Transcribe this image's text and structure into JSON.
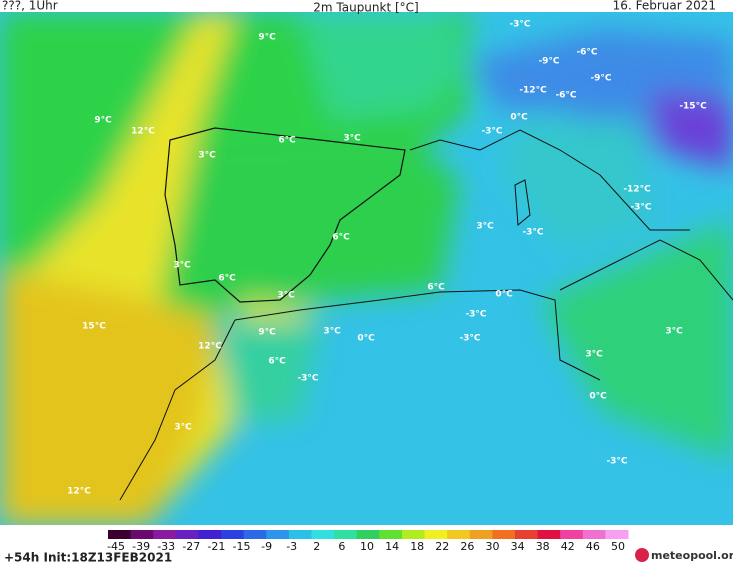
{
  "header": {
    "left": "???, 1Uhr",
    "title": "2m Taupunkt [°C]",
    "date": "16. Februar 2021"
  },
  "map_labels": [
    "-3°C",
    "9°C",
    "-6°C",
    "-9°C",
    "-9°C",
    "-12°C",
    "-6°C",
    "-15°C",
    "9°C",
    "12°C",
    "-3°C",
    "0°C",
    "6°C",
    "3°C",
    "3°C",
    "-12°C",
    "-3°C",
    "3°C",
    "-3°C",
    "6°C",
    "3°C",
    "6°C",
    "3°C",
    "6°C",
    "0°C",
    "-3°C",
    "15°C",
    "9°C",
    "3°C",
    "-3°C",
    "0°C",
    "12°C",
    "3°C",
    "3°C",
    "6°C",
    "-3°C",
    "0°C",
    "3°C",
    "-3°C",
    "12°C"
  ],
  "colorbar": {
    "ticks": [
      -45,
      -39,
      -33,
      -27,
      -21,
      -15,
      -9,
      -3,
      2,
      6,
      10,
      14,
      18,
      22,
      26,
      30,
      34,
      38,
      42,
      46,
      50
    ]
  },
  "footer": {
    "run": "+54h Init:18Z13FEB2021",
    "logo": "meteopool.org"
  }
}
